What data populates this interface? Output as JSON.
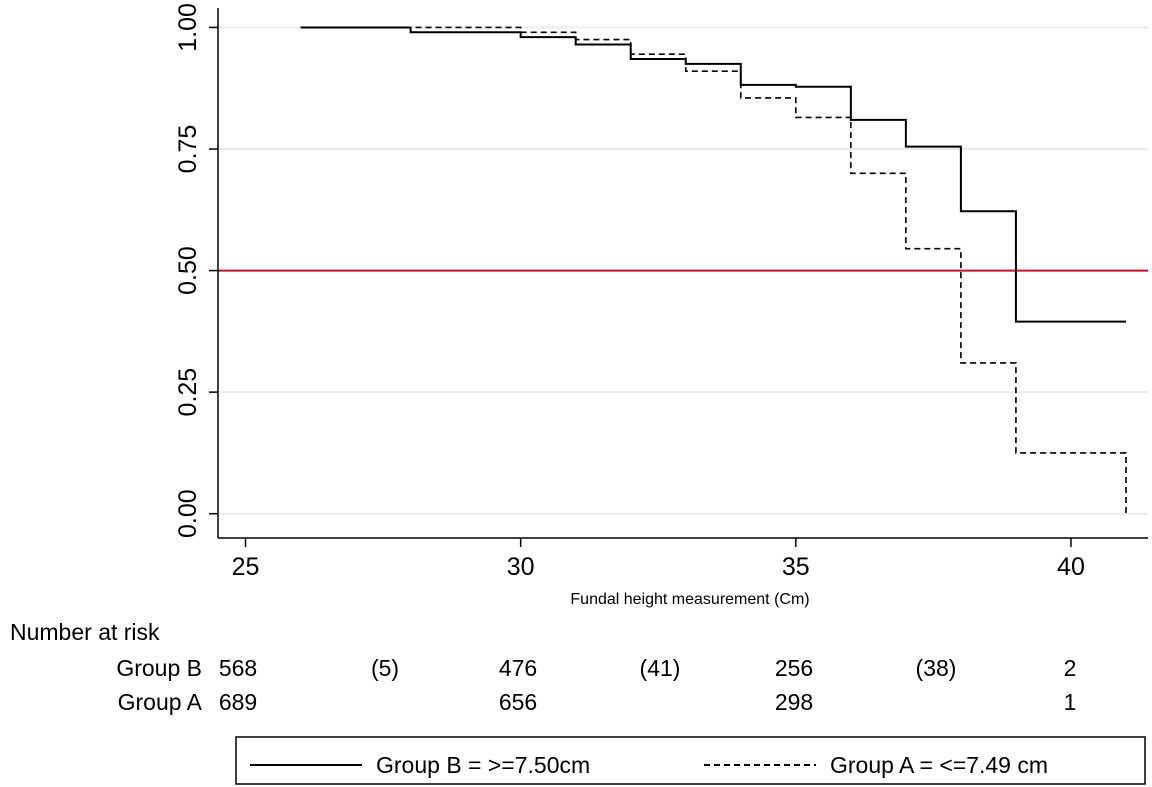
{
  "chart_data": {
    "type": "line",
    "title": "",
    "xlabel": "Fundal height measurement (Cm)",
    "ylabel": "",
    "xlim": [
      24.5,
      41.4
    ],
    "ylim": [
      -0.05,
      1.04
    ],
    "x_ticks": [
      25,
      30,
      35,
      40
    ],
    "y_ticks": [
      0.0,
      0.25,
      0.5,
      0.75,
      1.0
    ],
    "x_tick_labels": [
      "25",
      "30",
      "35",
      "40"
    ],
    "y_tick_labels": [
      "0.00",
      "0.25",
      "0.50",
      "0.75",
      "1.00"
    ],
    "grid": true,
    "reference_line": {
      "y": 0.5,
      "color": "#c8102e"
    },
    "series": [
      {
        "name": "Group B = >=7.50cm",
        "style": "solid",
        "step_points": [
          [
            26,
            1.0
          ],
          [
            28,
            0.99
          ],
          [
            30,
            0.98
          ],
          [
            31,
            0.965
          ],
          [
            32,
            0.935
          ],
          [
            33,
            0.925
          ],
          [
            34,
            0.882
          ],
          [
            35,
            0.878
          ],
          [
            36,
            0.81
          ],
          [
            37,
            0.755
          ],
          [
            38,
            0.622
          ],
          [
            39,
            0.395
          ],
          [
            41,
            0.395
          ]
        ]
      },
      {
        "name": "Group A = <=7.49 cm",
        "style": "dashed",
        "step_points": [
          [
            27,
            1.0
          ],
          [
            30,
            0.99
          ],
          [
            31,
            0.975
          ],
          [
            32,
            0.945
          ],
          [
            33,
            0.91
          ],
          [
            34,
            0.855
          ],
          [
            35,
            0.815
          ],
          [
            36,
            0.7
          ],
          [
            37,
            0.545
          ],
          [
            38,
            0.31
          ],
          [
            39,
            0.125
          ],
          [
            41,
            0.125
          ],
          [
            41,
            0.0
          ]
        ]
      }
    ]
  },
  "risk_table": {
    "heading": "Number at risk",
    "rows": [
      {
        "label": "Group B",
        "values": [
          "568",
          "(5)",
          "476",
          "(41)",
          "256",
          "(38)",
          "2"
        ]
      },
      {
        "label": "Group A",
        "values": [
          "689",
          "",
          "656",
          "",
          "298",
          "",
          "1"
        ]
      }
    ]
  },
  "legend": {
    "items": [
      {
        "label": "Group B = >=7.50cm",
        "style": "solid"
      },
      {
        "label": "Group A = <=7.49 cm",
        "style": "dashed"
      }
    ]
  },
  "colors": {
    "plot_background": "#ffffff",
    "grid": "#e6eef3",
    "line": "#000000",
    "reference": "#c8102e"
  }
}
